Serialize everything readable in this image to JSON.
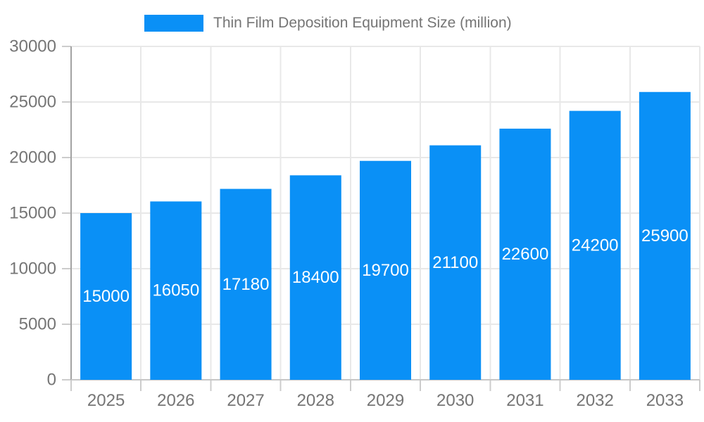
{
  "chart_data": {
    "type": "bar",
    "title": "Thin Film Deposition Equipment Size (million)",
    "categories": [
      "2025",
      "2026",
      "2027",
      "2028",
      "2029",
      "2030",
      "2031",
      "2032",
      "2033"
    ],
    "series": [
      {
        "name": "Thin Film Deposition Equipment Size (million)",
        "values": [
          15000,
          16050,
          17180,
          18400,
          19700,
          21100,
          22600,
          24200,
          25900
        ]
      }
    ],
    "value_labels": [
      "15000",
      "16050",
      "17180",
      "18400",
      "19700",
      "21100",
      "22600",
      "24200",
      "25900"
    ],
    "xlabel": "",
    "ylabel": "",
    "ylim": [
      0,
      30000
    ],
    "yticks": [
      0,
      5000,
      10000,
      15000,
      20000,
      25000,
      30000
    ],
    "grid": true,
    "legend_position": "top",
    "colors": {
      "bar": "#0A90F6",
      "grid": "#e8e8e8",
      "y_axis_line": "#a3a3a3",
      "x_axis_line": "#c6c6c6",
      "tick": "#cccccc",
      "tick_label": "#757575",
      "legend_label": "#757575",
      "value_label": "#ffffff",
      "background": "#ffffff"
    }
  }
}
